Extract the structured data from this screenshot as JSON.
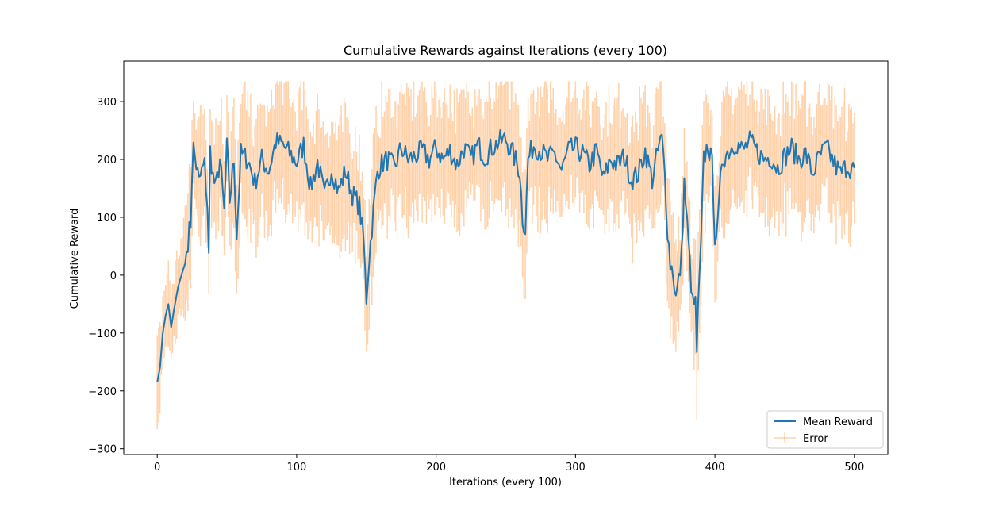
{
  "chart_data": {
    "type": "line",
    "title": "Cumulative Rewards against Iterations (every 100)",
    "xlabel": "Iterations (every 100)",
    "ylabel": "Cumulative Reward",
    "xlim": [
      -24,
      524
    ],
    "ylim": [
      -310,
      370
    ],
    "xticks": [
      0,
      100,
      200,
      300,
      400,
      500
    ],
    "yticks": [
      -300,
      -200,
      -100,
      0,
      100,
      200,
      300
    ],
    "xtick_labels": [
      "0",
      "100",
      "200",
      "300",
      "400",
      "500"
    ],
    "ytick_labels": [
      "−300",
      "−200",
      "−100",
      "0",
      "100",
      "200",
      "300"
    ],
    "grid": false,
    "legend_position": "lower-right",
    "series": [
      {
        "name": "Mean Reward",
        "color": "#1f77b4",
        "style": "line"
      },
      {
        "name": "Error",
        "color": "#ff7f0e",
        "style": "errorbar",
        "alpha": 0.35
      }
    ],
    "anchors": [
      [
        0,
        -185
      ],
      [
        2,
        -160
      ],
      [
        4,
        -100
      ],
      [
        6,
        -70
      ],
      [
        8,
        -50
      ],
      [
        10,
        -90
      ],
      [
        12,
        -60
      ],
      [
        15,
        -20
      ],
      [
        18,
        5
      ],
      [
        20,
        20
      ],
      [
        22,
        60
      ],
      [
        24,
        90
      ],
      [
        25,
        180
      ],
      [
        26,
        220
      ],
      [
        28,
        190
      ],
      [
        30,
        160
      ],
      [
        32,
        180
      ],
      [
        34,
        190
      ],
      [
        36,
        120
      ],
      [
        37,
        30
      ],
      [
        38,
        215
      ],
      [
        40,
        170
      ],
      [
        42,
        150
      ],
      [
        45,
        200
      ],
      [
        48,
        110
      ],
      [
        50,
        220
      ],
      [
        52,
        130
      ],
      [
        55,
        200
      ],
      [
        57,
        70
      ],
      [
        60,
        210
      ],
      [
        65,
        200
      ],
      [
        70,
        160
      ],
      [
        75,
        200
      ],
      [
        80,
        180
      ],
      [
        85,
        230
      ],
      [
        90,
        225
      ],
      [
        95,
        210
      ],
      [
        100,
        195
      ],
      [
        105,
        225
      ],
      [
        110,
        150
      ],
      [
        115,
        195
      ],
      [
        120,
        135
      ],
      [
        125,
        185
      ],
      [
        130,
        145
      ],
      [
        135,
        180
      ],
      [
        140,
        140
      ],
      [
        145,
        120
      ],
      [
        148,
        60
      ],
      [
        150,
        -40
      ],
      [
        152,
        30
      ],
      [
        155,
        110
      ],
      [
        158,
        180
      ],
      [
        160,
        190
      ],
      [
        165,
        200
      ],
      [
        170,
        185
      ],
      [
        175,
        220
      ],
      [
        180,
        200
      ],
      [
        185,
        205
      ],
      [
        190,
        215
      ],
      [
        195,
        200
      ],
      [
        200,
        220
      ],
      [
        205,
        200
      ],
      [
        210,
        215
      ],
      [
        215,
        190
      ],
      [
        220,
        220
      ],
      [
        225,
        200
      ],
      [
        230,
        225
      ],
      [
        235,
        205
      ],
      [
        240,
        220
      ],
      [
        245,
        230
      ],
      [
        250,
        235
      ],
      [
        255,
        210
      ],
      [
        260,
        180
      ],
      [
        262,
        100
      ],
      [
        264,
        80
      ],
      [
        266,
        200
      ],
      [
        270,
        225
      ],
      [
        275,
        215
      ],
      [
        280,
        200
      ],
      [
        285,
        210
      ],
      [
        290,
        180
      ],
      [
        295,
        215
      ],
      [
        300,
        220
      ],
      [
        305,
        210
      ],
      [
        310,
        190
      ],
      [
        315,
        215
      ],
      [
        320,
        165
      ],
      [
        325,
        200
      ],
      [
        330,
        190
      ],
      [
        335,
        205
      ],
      [
        340,
        165
      ],
      [
        345,
        175
      ],
      [
        350,
        215
      ],
      [
        355,
        165
      ],
      [
        360,
        225
      ],
      [
        362,
        235
      ],
      [
        364,
        175
      ],
      [
        366,
        80
      ],
      [
        368,
        20
      ],
      [
        370,
        5
      ],
      [
        372,
        -40
      ],
      [
        374,
        -10
      ],
      [
        376,
        30
      ],
      [
        378,
        160
      ],
      [
        380,
        90
      ],
      [
        382,
        20
      ],
      [
        384,
        -50
      ],
      [
        386,
        -50
      ],
      [
        387,
        -130
      ],
      [
        388,
        -60
      ],
      [
        390,
        50
      ],
      [
        392,
        200
      ],
      [
        395,
        225
      ],
      [
        398,
        190
      ],
      [
        400,
        70
      ],
      [
        402,
        80
      ],
      [
        405,
        200
      ],
      [
        410,
        215
      ],
      [
        415,
        230
      ],
      [
        420,
        215
      ],
      [
        425,
        230
      ],
      [
        430,
        215
      ],
      [
        435,
        200
      ],
      [
        440,
        205
      ],
      [
        445,
        185
      ],
      [
        450,
        205
      ],
      [
        455,
        220
      ],
      [
        460,
        200
      ],
      [
        465,
        210
      ],
      [
        470,
        175
      ],
      [
        475,
        205
      ],
      [
        480,
        220
      ],
      [
        485,
        195
      ],
      [
        490,
        175
      ],
      [
        495,
        190
      ],
      [
        500,
        180
      ]
    ]
  }
}
